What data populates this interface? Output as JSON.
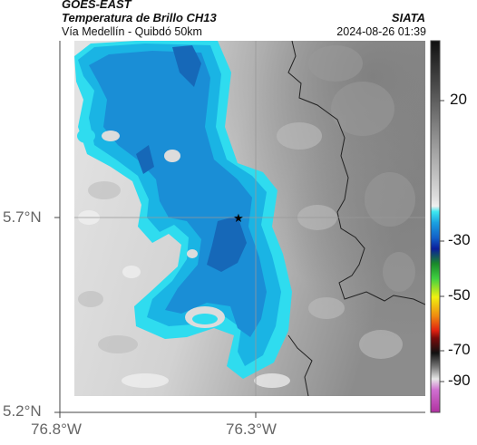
{
  "header": {
    "satellite": "GOES-EAST",
    "product": "Temperatura de Brillo CH13",
    "route": "Vía Medellín - Quibdó 50km",
    "org": "SIATA",
    "timestamp": "2024-08-26 01:39"
  },
  "map": {
    "lat_ticks": [
      "5.7°N",
      "5.2°N"
    ],
    "lon_ticks": [
      "76.8°W",
      "76.3°W"
    ],
    "marker": "star-marker",
    "colors": {
      "cold_cloud": "#1e90d6",
      "cool_cloud": "#18b8e6",
      "edge_cloud": "#2de0f0",
      "core": "#1a6fc0",
      "warm_ground_light": "#e2e2e2",
      "warm_ground_dark": "#8a8a8a",
      "border": "#222222"
    }
  },
  "colorbar": {
    "labels": [
      "20",
      "-30",
      "-50",
      "-70",
      "-90"
    ]
  }
}
